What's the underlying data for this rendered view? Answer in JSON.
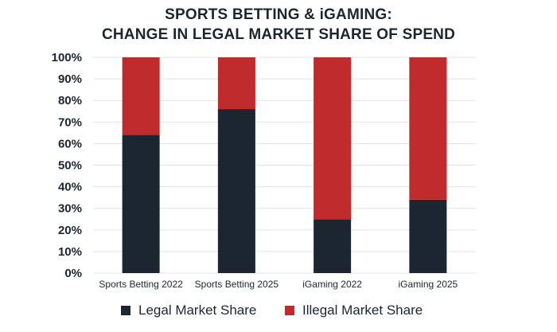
{
  "chart_data": {
    "type": "bar",
    "stacked": true,
    "title_lines": [
      "SPORTS BETTING & iGAMING:",
      "CHANGE IN LEGAL MARKET SHARE OF SPEND"
    ],
    "categories": [
      "Sports Betting 2022",
      "Sports Betting 2025",
      "iGaming 2022",
      "iGaming 2025"
    ],
    "series": [
      {
        "name": "Legal Market Share",
        "color": "#1b2630",
        "values": [
          64,
          76,
          25,
          34
        ]
      },
      {
        "name": "Illegal Market Share",
        "color": "#bf2a2c",
        "values": [
          36,
          24,
          75,
          66
        ]
      }
    ],
    "ylim": [
      0,
      100
    ],
    "yticks": [
      "0%",
      "10%",
      "20%",
      "30%",
      "40%",
      "50%",
      "60%",
      "70%",
      "80%",
      "90%",
      "100%"
    ],
    "grid": true,
    "legend_position": "bottom"
  }
}
